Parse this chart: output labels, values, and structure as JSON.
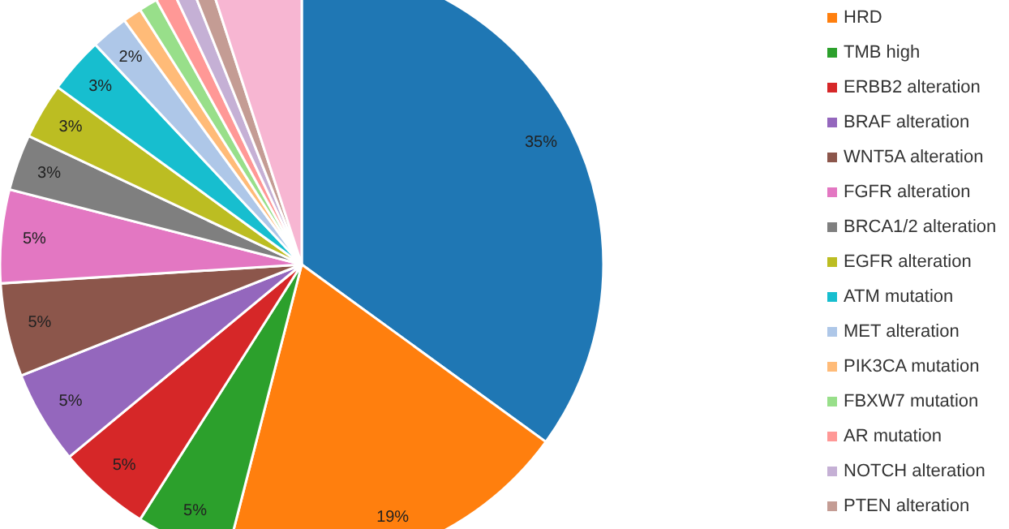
{
  "chart_data": {
    "type": "pie",
    "categories": [
      null,
      "HRD",
      "TMB high",
      "ERBB2 alteration",
      "BRAF alteration",
      "WNT5A alteration",
      "FGFR alteration",
      "BRCA1/2 alteration",
      "EGFR alteration",
      "ATM mutation",
      "MET alteration",
      "PIK3CA mutation",
      "FBXW7 mutation",
      "AR mutation",
      "NOTCH alteration",
      "PTEN alteration",
      null
    ],
    "values": [
      35,
      19,
      5,
      5,
      5,
      5,
      5,
      3,
      3,
      3,
      2,
      1,
      1,
      1,
      1,
      1,
      5
    ],
    "colors": [
      "#1f77b4",
      "#ff7f0e",
      "#2ca02c",
      "#d62728",
      "#9467bd",
      "#8c564b",
      "#e377c2",
      "#7f7f7f",
      "#bcbd22",
      "#17becf",
      "#aec7e8",
      "#ffbb78",
      "#98df8a",
      "#ff9896",
      "#c5b0d5",
      "#c49c94",
      "#f7b6d2"
    ],
    "value_labels": [
      "35%",
      "19%",
      "5%",
      "5%",
      "5%",
      "5%",
      "5%",
      "3%",
      "3%",
      "3%",
      "2%",
      null,
      null,
      null,
      null,
      null,
      null
    ],
    "legend": "right"
  }
}
